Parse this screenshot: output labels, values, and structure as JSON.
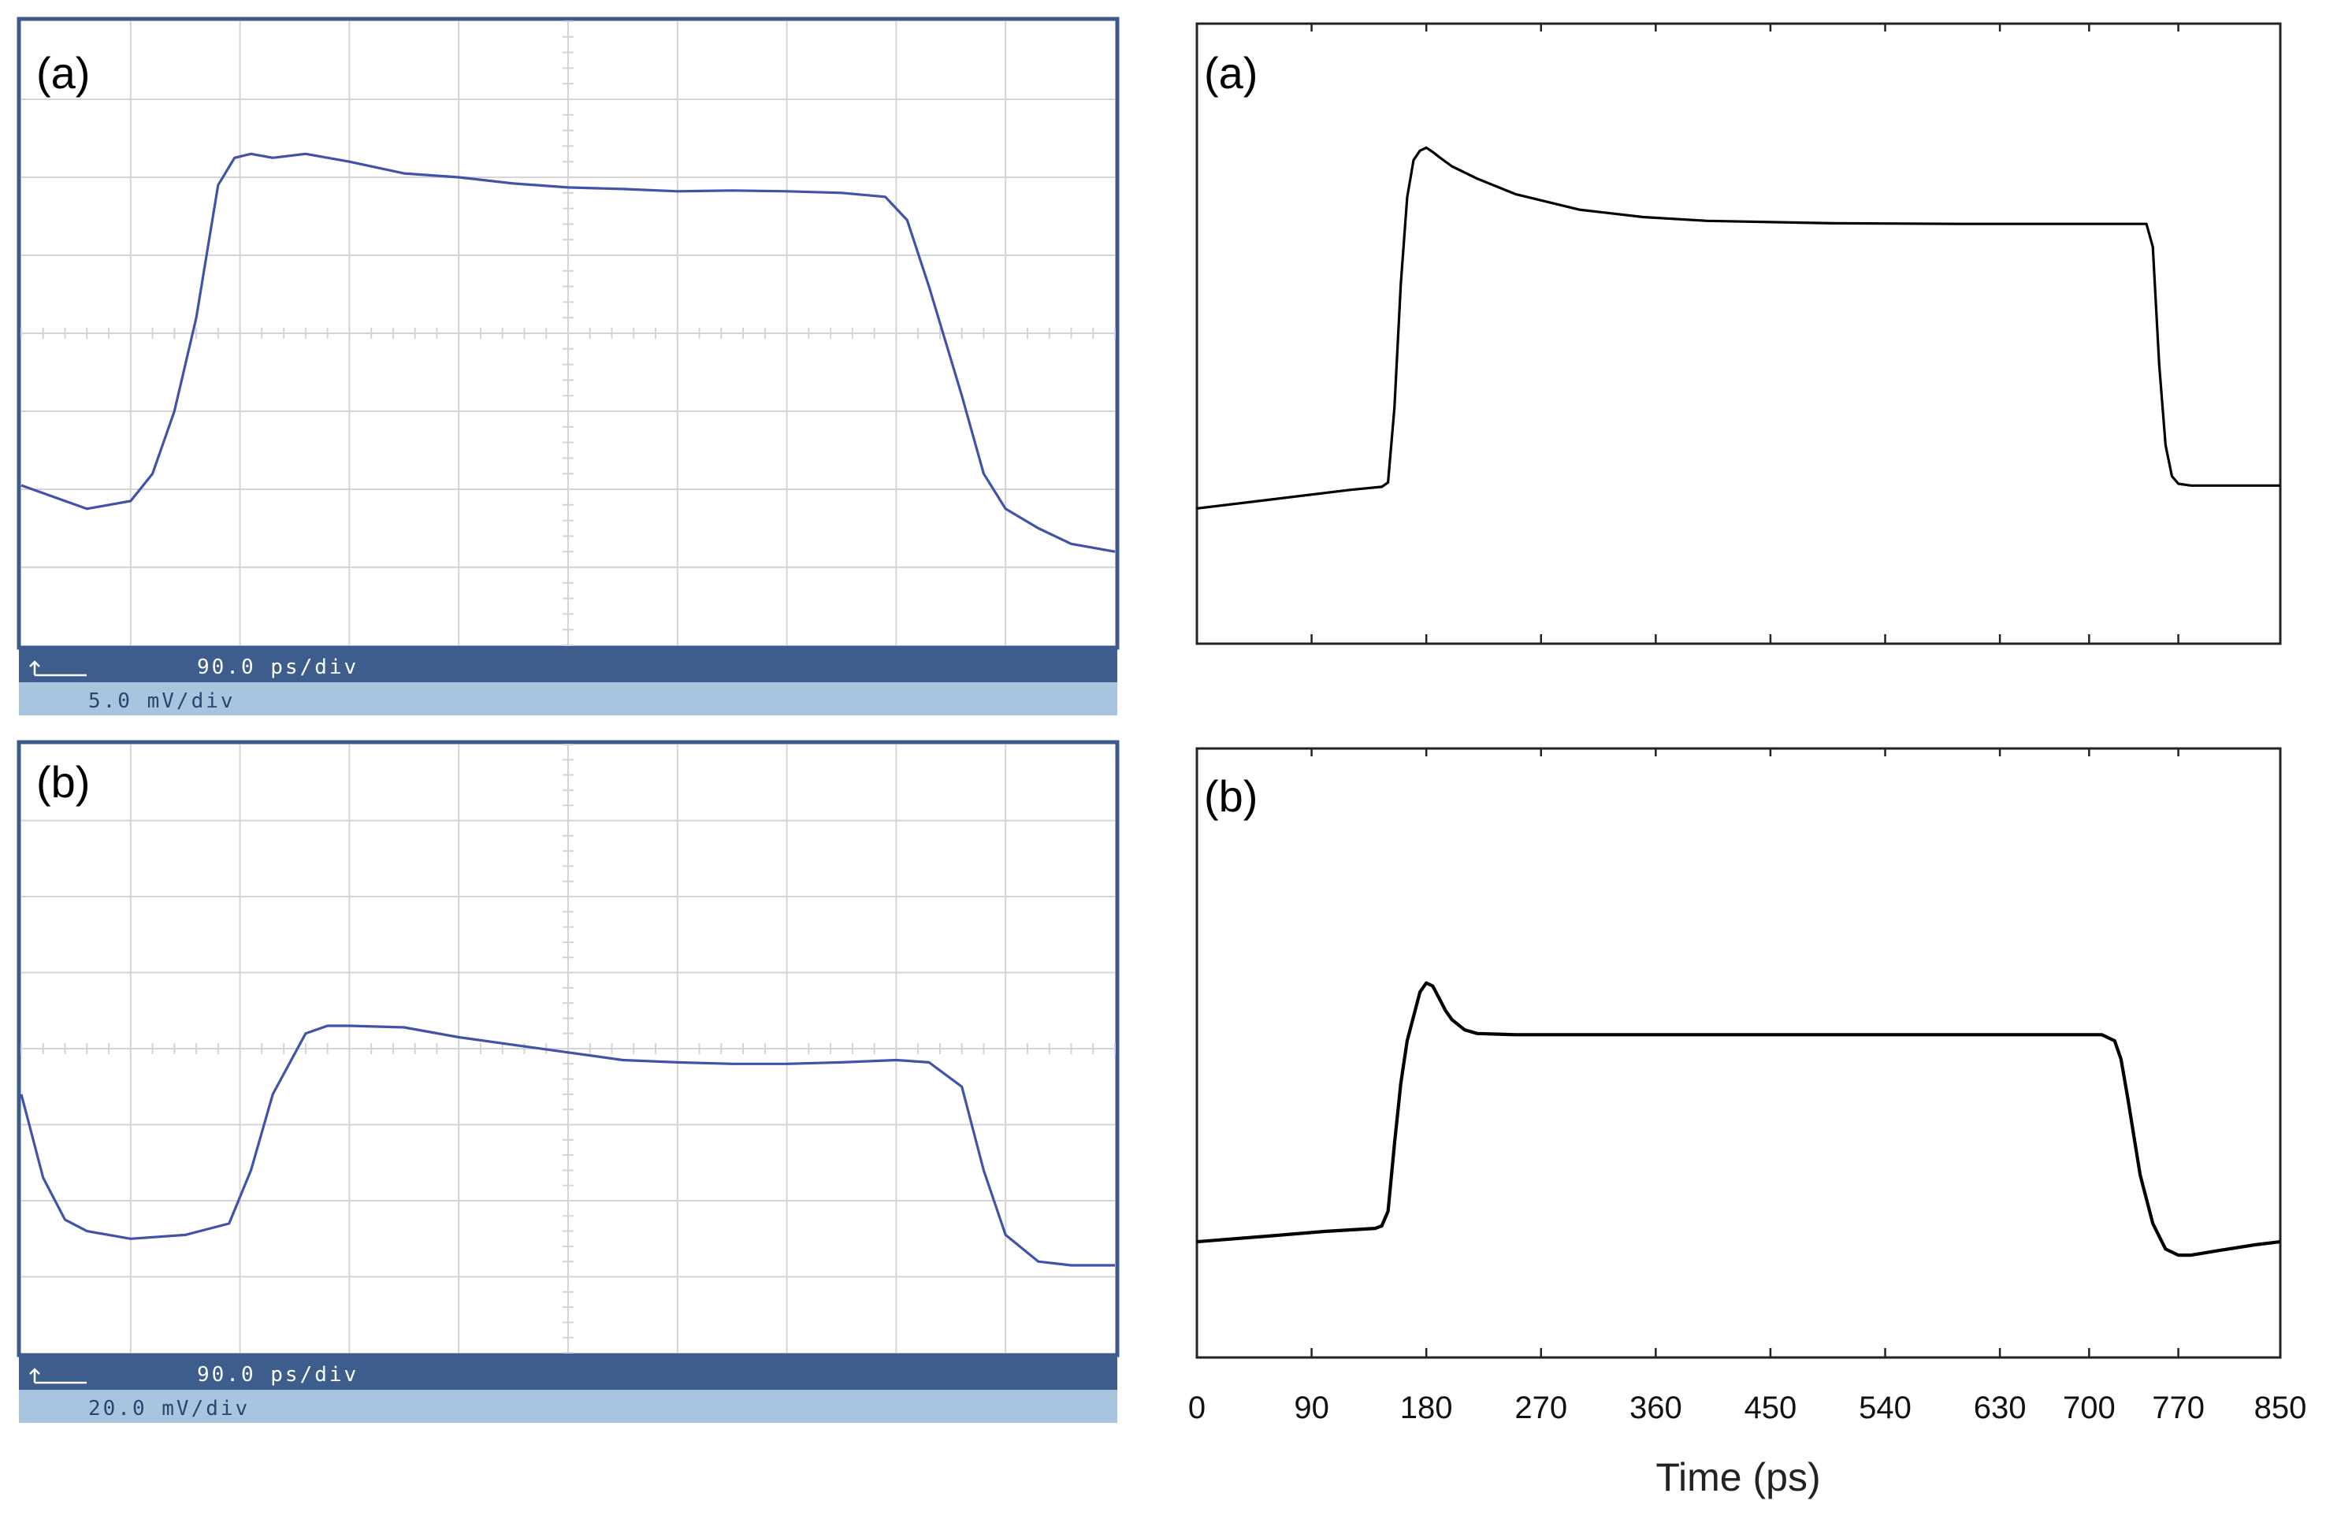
{
  "colors": {
    "scope_trace": "#3f53a8",
    "scope_frame": "#3d5a8e",
    "scope_grid": "#d4d4d4",
    "scope_bar_dark": "#3d5e8c",
    "scope_bar_light": "#a9c4de",
    "scope_bar_text": "#ffffff",
    "scope_bar_text_light": "#2a4670",
    "sim_trace": "#000000"
  },
  "chart_data": [
    {
      "id": "scope-a",
      "type": "line",
      "panel_label": "(a)",
      "time_scale": "90.0 ps/div",
      "voltage_scale": "5.0 mV/div",
      "divisions": {
        "x": 10,
        "y": 8
      },
      "xlim": [
        0,
        10
      ],
      "ylim": [
        0,
        8
      ],
      "series": [
        {
          "x": [
            0,
            0.3,
            0.6,
            1.0,
            1.2,
            1.4,
            1.6,
            1.8,
            1.95,
            2.1,
            2.3,
            2.6,
            3.0,
            3.5,
            4.0,
            4.5,
            5.0,
            5.5,
            6.0,
            6.5,
            7.0,
            7.5,
            7.9,
            8.1,
            8.3,
            8.6,
            8.8,
            9.0,
            9.3,
            9.6,
            10.0
          ],
          "y": [
            2.05,
            1.9,
            1.75,
            1.85,
            2.2,
            3.0,
            4.2,
            5.9,
            6.25,
            6.3,
            6.25,
            6.3,
            6.2,
            6.05,
            6.0,
            5.92,
            5.87,
            5.85,
            5.82,
            5.83,
            5.82,
            5.8,
            5.75,
            5.45,
            4.6,
            3.2,
            2.2,
            1.75,
            1.5,
            1.3,
            1.2
          ]
        }
      ]
    },
    {
      "id": "scope-b",
      "type": "line",
      "panel_label": "(b)",
      "time_scale": "90.0 ps/div",
      "voltage_scale": "20.0 mV/div",
      "divisions": {
        "x": 10,
        "y": 8
      },
      "xlim": [
        0,
        10
      ],
      "ylim": [
        0,
        8
      ],
      "series": [
        {
          "x": [
            0,
            0.2,
            0.4,
            0.6,
            1.0,
            1.5,
            1.9,
            2.1,
            2.3,
            2.6,
            2.8,
            3.0,
            3.5,
            4.0,
            4.5,
            5.0,
            5.5,
            6.0,
            6.5,
            7.0,
            7.5,
            8.0,
            8.3,
            8.6,
            8.8,
            9.0,
            9.3,
            9.6,
            10.0
          ],
          "y": [
            3.4,
            2.3,
            1.75,
            1.6,
            1.5,
            1.55,
            1.7,
            2.4,
            3.4,
            4.2,
            4.3,
            4.3,
            4.28,
            4.15,
            4.05,
            3.95,
            3.85,
            3.82,
            3.8,
            3.8,
            3.82,
            3.85,
            3.82,
            3.5,
            2.4,
            1.55,
            1.2,
            1.15,
            1.15
          ]
        }
      ]
    },
    {
      "id": "sim-a",
      "type": "line",
      "panel_label": "(a)",
      "xlim": [
        0,
        850
      ],
      "ylim": [
        0,
        1
      ],
      "series": [
        {
          "x": [
            0,
            60,
            120,
            145,
            150,
            155,
            160,
            165,
            170,
            175,
            180,
            185,
            190,
            200,
            220,
            250,
            300,
            350,
            400,
            500,
            600,
            700,
            745,
            750,
            755,
            760,
            765,
            770,
            780,
            800,
            850
          ],
          "y": [
            0.218,
            0.233,
            0.248,
            0.253,
            0.26,
            0.38,
            0.58,
            0.72,
            0.78,
            0.795,
            0.8,
            0.793,
            0.785,
            0.77,
            0.75,
            0.725,
            0.7,
            0.688,
            0.682,
            0.678,
            0.677,
            0.677,
            0.677,
            0.64,
            0.45,
            0.32,
            0.27,
            0.258,
            0.255,
            0.255,
            0.255
          ]
        }
      ]
    },
    {
      "id": "sim-b",
      "type": "line",
      "panel_label": "(b)",
      "xlim": [
        0,
        850
      ],
      "ylim": [
        0,
        1
      ],
      "xticks": [
        0,
        90,
        180,
        270,
        360,
        450,
        540,
        630,
        700,
        770,
        850
      ],
      "xlabel": "Time (ps)",
      "series": [
        {
          "x": [
            0,
            60,
            100,
            140,
            145,
            150,
            155,
            160,
            165,
            170,
            175,
            180,
            185,
            190,
            195,
            200,
            210,
            220,
            250,
            300,
            400,
            500,
            600,
            700,
            710,
            720,
            725,
            730,
            740,
            750,
            760,
            770,
            780,
            800,
            830,
            850
          ],
          "y": [
            0.19,
            0.2,
            0.207,
            0.212,
            0.216,
            0.24,
            0.35,
            0.45,
            0.52,
            0.56,
            0.6,
            0.615,
            0.61,
            0.59,
            0.57,
            0.555,
            0.538,
            0.532,
            0.53,
            0.53,
            0.53,
            0.53,
            0.53,
            0.53,
            0.53,
            0.52,
            0.49,
            0.43,
            0.3,
            0.22,
            0.178,
            0.168,
            0.168,
            0.175,
            0.185,
            0.19
          ]
        }
      ]
    }
  ]
}
